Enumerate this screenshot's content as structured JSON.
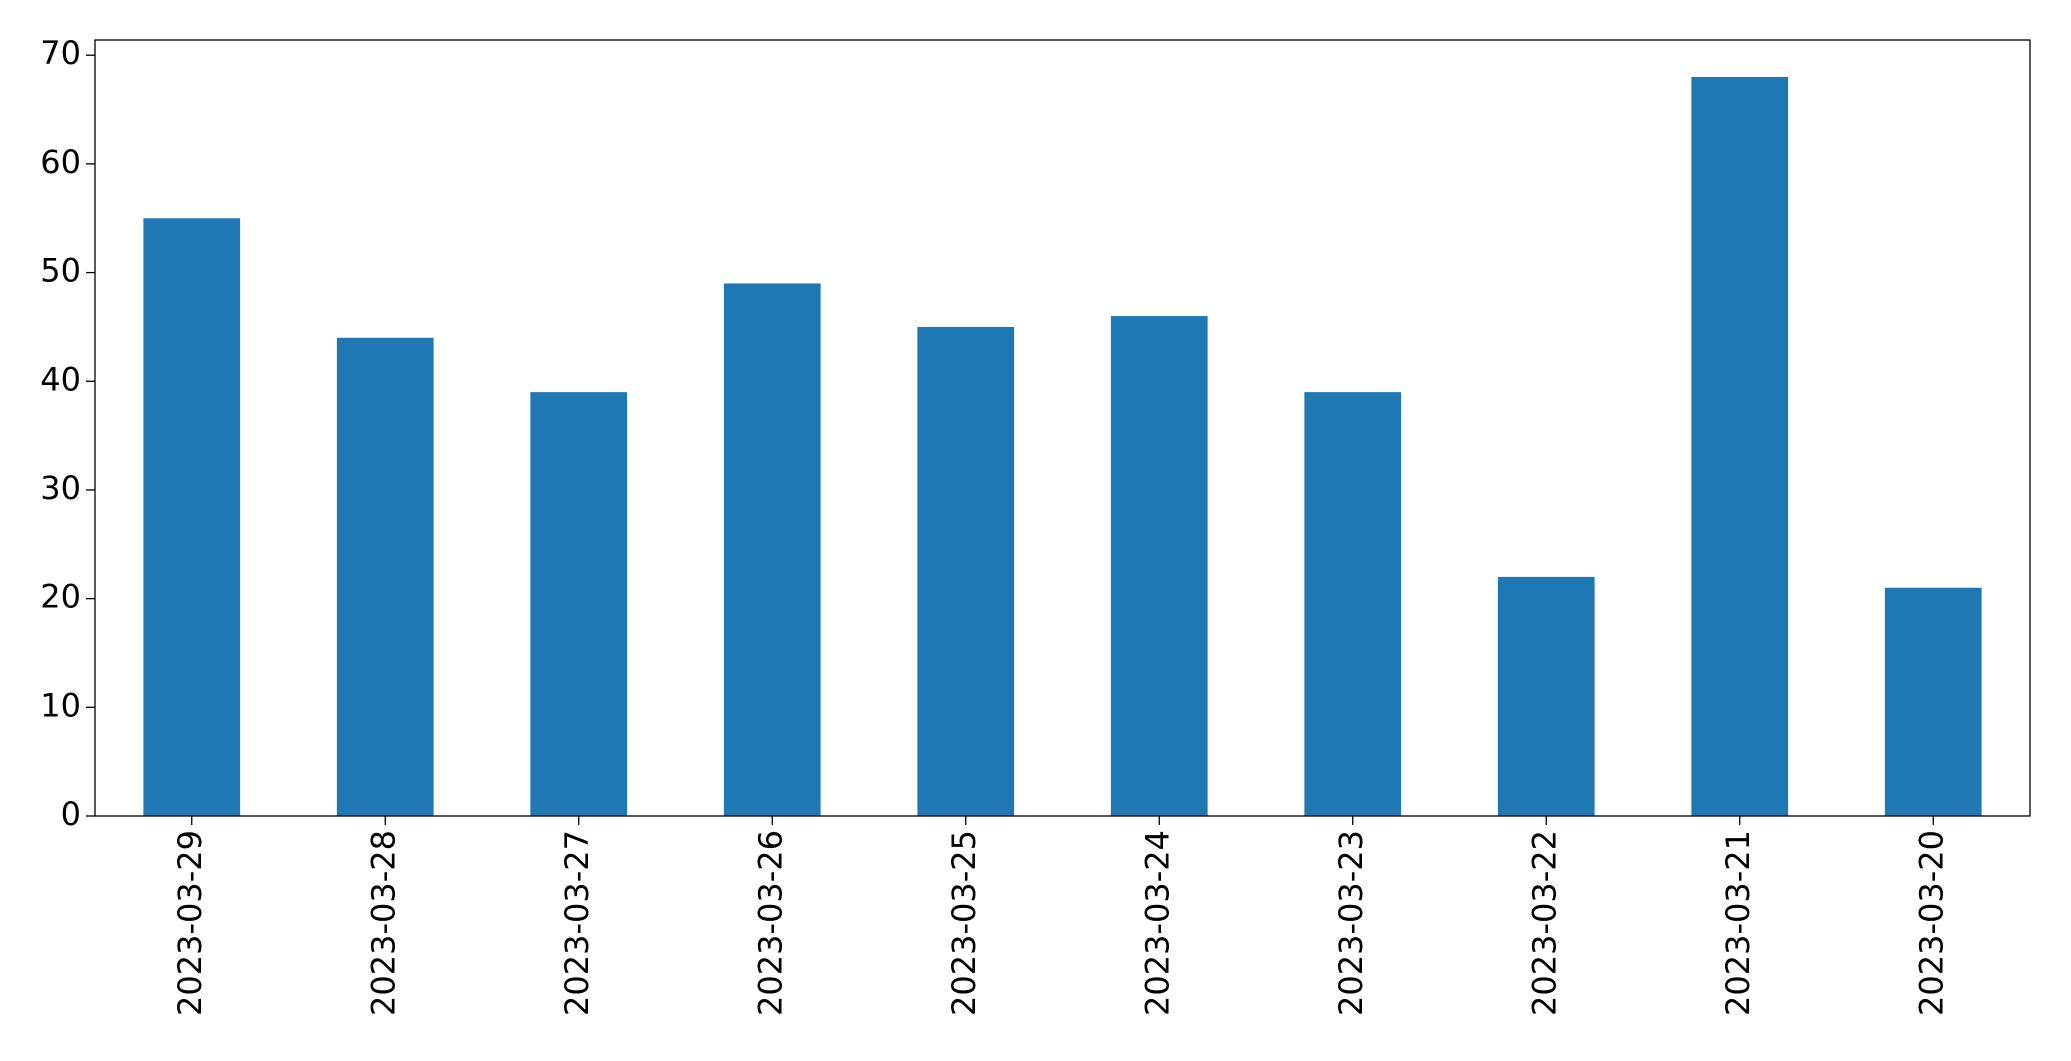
{
  "chart_data": {
    "type": "bar",
    "categories": [
      "2023-03-29",
      "2023-03-28",
      "2023-03-27",
      "2023-03-26",
      "2023-03-25",
      "2023-03-24",
      "2023-03-23",
      "2023-03-22",
      "2023-03-21",
      "2023-03-20"
    ],
    "values": [
      55,
      44,
      39,
      49,
      45,
      46,
      39,
      22,
      68,
      21
    ],
    "color": "#1f77b4",
    "ylim": [
      0,
      71.4
    ],
    "yticks": [
      0,
      10,
      20,
      30,
      40,
      50,
      60,
      70
    ],
    "grid": false
  }
}
